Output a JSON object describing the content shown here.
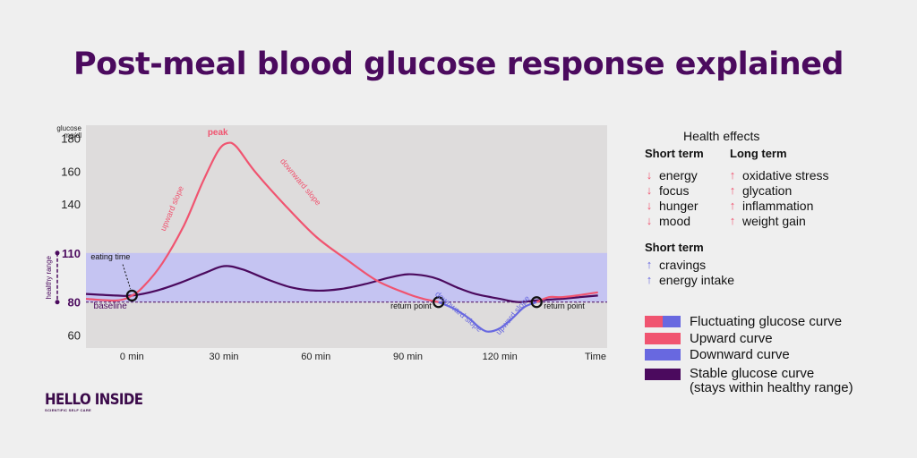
{
  "title": "Post-meal blood glucose response explained",
  "chart_data": {
    "type": "line",
    "title": "Post-meal blood glucose response explained",
    "ylabel": "glucose mg/dl",
    "xlabel": "Time",
    "ylim": [
      52,
      188
    ],
    "xlim": [
      -15,
      155
    ],
    "yticks": [
      180,
      160,
      140,
      110,
      80,
      60
    ],
    "xticks": [
      {
        "x": 0,
        "label": "0 min"
      },
      {
        "x": 30,
        "label": "30 min"
      },
      {
        "x": 60,
        "label": "60 min"
      },
      {
        "x": 90,
        "label": "90 min"
      },
      {
        "x": 120,
        "label": "120 min"
      },
      {
        "x": 150,
        "label": "Time"
      }
    ],
    "healthy_range": [
      80,
      110
    ],
    "healthy_range_label": "healthy range",
    "baseline": 80,
    "baseline_label": "baseline",
    "series": [
      {
        "name": "Fluctuating glucose curve",
        "x": [
          -15,
          -5,
          0,
          4,
          10,
          17,
          23,
          28,
          31,
          34,
          40,
          50,
          60,
          70,
          80,
          90,
          95,
          100,
          105,
          110,
          113,
          116,
          120,
          124,
          128,
          132,
          136,
          140,
          145,
          152
        ],
        "y": [
          82,
          81,
          84,
          90,
          104,
          127,
          153,
          172,
          177,
          175,
          160,
          139,
          120,
          106,
          93,
          85,
          82,
          80,
          76,
          70,
          65,
          62,
          64,
          70,
          77,
          80,
          83,
          83,
          84,
          86
        ]
      },
      {
        "name": "Stable glucose curve",
        "x": [
          -15,
          -5,
          0,
          8,
          16,
          24,
          30,
          36,
          44,
          52,
          60,
          68,
          76,
          84,
          90,
          96,
          100,
          106,
          112,
          120,
          126,
          132,
          140,
          146,
          152
        ],
        "y": [
          85,
          84,
          84,
          87,
          92,
          98,
          102,
          100,
          94,
          89,
          87,
          88,
          91,
          95,
          97,
          96,
          94,
          89,
          85,
          82,
          80,
          81,
          82,
          83,
          84
        ]
      }
    ],
    "annotations": {
      "peak": "peak",
      "upward": "upward slope",
      "downward": "downward slope",
      "eating": "eating time",
      "return1": "return point",
      "return2": "return point",
      "downward2": "downward slope",
      "upward2": "upward slope"
    },
    "markers": [
      {
        "x": 0,
        "y": 84
      },
      {
        "x": 100,
        "y": 80
      },
      {
        "x": 132,
        "y": 80
      }
    ]
  },
  "health_effects": {
    "title": "Health effects",
    "short_term_heading": "Short term",
    "long_term_heading": "Long term",
    "short_term": [
      "energy",
      "focus",
      "hunger",
      "mood"
    ],
    "long_term": [
      "oxidative stress",
      "glycation",
      "inflammation",
      "weight gain"
    ],
    "short_term2_heading": "Short term",
    "short_term2": [
      "cravings",
      "energy intake"
    ],
    "arrow_down": "↓",
    "arrow_up": "↑"
  },
  "legend": [
    {
      "label": "Fluctuating glucose curve",
      "colors": [
        "#f05470",
        "#6868e0"
      ]
    },
    {
      "label": "Upward curve",
      "colors": [
        "#f05470"
      ]
    },
    {
      "label": "Downward curve",
      "colors": [
        "#6868e0"
      ]
    },
    {
      "label": "Stable glucose curve",
      "label2": "(stays within healthy range)",
      "colors": [
        "#4b0a5e"
      ]
    }
  ],
  "colors": {
    "red": "#f05470",
    "blue": "#6868e0",
    "purple": "#4b0a5e",
    "healthy_band": "#c5c4f2",
    "plot_bg": "#dedcdc"
  },
  "logo": {
    "name": "HELLO INSIDE",
    "tagline": "SCIENTIFIC SELF CARE"
  }
}
